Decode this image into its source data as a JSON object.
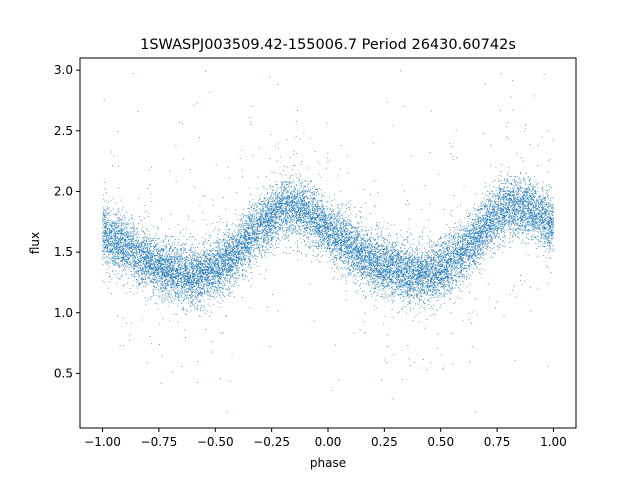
{
  "chart_data": {
    "type": "scatter",
    "title": "1SWASPJ003509.42-155006.7 Period 26430.60742s",
    "xlabel": "phase",
    "ylabel": "flux",
    "xlim": [
      -1.1,
      1.1
    ],
    "ylim": [
      0.05,
      3.1
    ],
    "xticks": [
      -1.0,
      -0.75,
      -0.5,
      -0.25,
      0.0,
      0.25,
      0.5,
      0.75,
      1.0
    ],
    "xtick_labels": [
      "−1.00",
      "−0.75",
      "−0.50",
      "−0.25",
      "0.00",
      "0.25",
      "0.50",
      "0.75",
      "1.00"
    ],
    "yticks": [
      0.5,
      1.0,
      1.5,
      2.0,
      2.5,
      3.0
    ],
    "ytick_labels": [
      "0.5",
      "1.0",
      "1.5",
      "2.0",
      "2.5",
      "3.0"
    ],
    "grid": false,
    "marker_color": "#1f77b4",
    "series": [
      {
        "name": "",
        "profile": {
          "phase": [
            -1.0,
            -0.9,
            -0.8,
            -0.7,
            -0.6,
            -0.5,
            -0.4,
            -0.3,
            -0.2,
            -0.1,
            0.0,
            0.1,
            0.2,
            0.3,
            0.4,
            0.5,
            0.6,
            0.7,
            0.8,
            0.9,
            1.0
          ],
          "flux": [
            1.65,
            1.55,
            1.42,
            1.35,
            1.3,
            1.35,
            1.5,
            1.72,
            1.88,
            1.85,
            1.68,
            1.55,
            1.42,
            1.35,
            1.3,
            1.35,
            1.5,
            1.72,
            1.88,
            1.85,
            1.72
          ]
        },
        "scatter_sigma": 0.12,
        "approx_points": 16000
      }
    ]
  }
}
